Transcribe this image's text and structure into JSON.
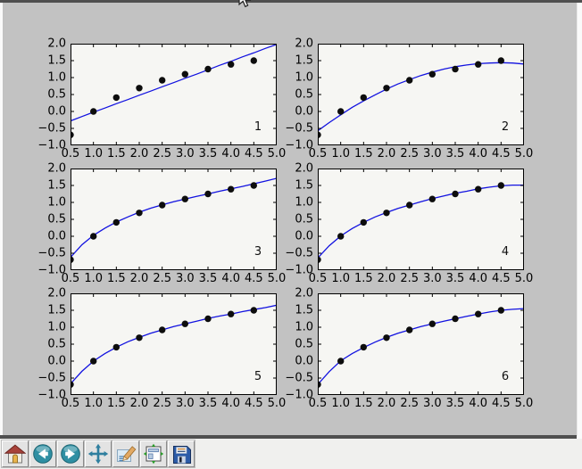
{
  "window": {
    "cursor_icon": "arrow-pointer"
  },
  "colors": {
    "chrome_band": "#4f4f4f",
    "figure_bg": "#c2c2c2",
    "axes_bg": "#f6f6f3",
    "fit_line": "#1212e0",
    "marker": "#0d0d0d",
    "tick": "#000000",
    "toolbar_bg": "#f0f0ee",
    "button_face": "#e3e3e3"
  },
  "toolbar": {
    "buttons": [
      {
        "name": "home",
        "icon": "home-icon"
      },
      {
        "name": "back",
        "icon": "back-arrow-icon"
      },
      {
        "name": "forward",
        "icon": "forward-arrow-icon"
      },
      {
        "name": "pan",
        "icon": "pan-arrows-icon"
      },
      {
        "name": "zoom-to-rect",
        "icon": "zoom-rect-pencil-icon"
      },
      {
        "name": "configure-subplots",
        "icon": "subplots-icon"
      },
      {
        "name": "save",
        "icon": "save-floppy-icon"
      }
    ]
  },
  "chart_data": [
    {
      "type": "scatter",
      "annotation": "1",
      "fit_degree": 1,
      "xlim": [
        0.5,
        5.0
      ],
      "ylim": [
        -1.0,
        2.0
      ],
      "grid": false,
      "xticks": [
        "0.5",
        "1.0",
        "1.5",
        "2.0",
        "2.5",
        "3.0",
        "3.5",
        "4.0",
        "4.5",
        "5.0"
      ],
      "yticks": [
        "2.0",
        "1.5",
        "1.0",
        "0.5",
        "0.0",
        "−0.5",
        "−1.0"
      ],
      "scatter": {
        "x": [
          0.5,
          1.0,
          1.5,
          2.0,
          2.5,
          3.0,
          3.5,
          4.0,
          4.5
        ],
        "y": [
          -0.69,
          0.0,
          0.41,
          0.69,
          0.92,
          1.1,
          1.25,
          1.39,
          1.5
        ]
      },
      "line": {
        "x": [
          0.5,
          0.75,
          1.0,
          1.25,
          1.5,
          1.75,
          2.0,
          2.25,
          2.5,
          2.75,
          3.0,
          3.25,
          3.5,
          3.75,
          4.0,
          4.25,
          4.5,
          4.75,
          5.0
        ],
        "y": [
          -0.28,
          -0.15,
          -0.02,
          0.1,
          0.23,
          0.35,
          0.48,
          0.6,
          0.73,
          0.85,
          0.98,
          1.1,
          1.23,
          1.36,
          1.48,
          1.61,
          1.73,
          1.86,
          1.98
        ]
      }
    },
    {
      "type": "scatter",
      "annotation": "2",
      "fit_degree": 2,
      "xlim": [
        0.5,
        5.0
      ],
      "ylim": [
        -1.0,
        2.0
      ],
      "grid": false,
      "xticks": [
        "0.5",
        "1.0",
        "1.5",
        "2.0",
        "2.5",
        "3.0",
        "3.5",
        "4.0",
        "4.5",
        "5.0"
      ],
      "yticks": [
        "2.0",
        "1.5",
        "1.0",
        "0.5",
        "0.0",
        "−0.5",
        "−1.0"
      ],
      "scatter": {
        "x": [
          0.5,
          1.0,
          1.5,
          2.0,
          2.5,
          3.0,
          3.5,
          4.0,
          4.5
        ],
        "y": [
          -0.69,
          0.0,
          0.41,
          0.69,
          0.92,
          1.1,
          1.25,
          1.39,
          1.5
        ]
      },
      "line": {
        "x": [
          0.5,
          0.75,
          1.0,
          1.25,
          1.5,
          1.75,
          2.0,
          2.25,
          2.5,
          2.75,
          3.0,
          3.25,
          3.5,
          3.75,
          4.0,
          4.25,
          4.5,
          4.75,
          5.0
        ],
        "y": [
          -0.57,
          -0.33,
          -0.1,
          0.12,
          0.31,
          0.49,
          0.66,
          0.81,
          0.94,
          1.06,
          1.16,
          1.25,
          1.32,
          1.37,
          1.41,
          1.43,
          1.44,
          1.43,
          1.4
        ]
      }
    },
    {
      "type": "scatter",
      "annotation": "3",
      "fit_degree": 3,
      "xlim": [
        0.5,
        5.0
      ],
      "ylim": [
        -1.0,
        2.0
      ],
      "grid": false,
      "xticks": [
        "0.5",
        "1.0",
        "1.5",
        "2.0",
        "2.5",
        "3.0",
        "3.5",
        "4.0",
        "4.5",
        "5.0"
      ],
      "yticks": [
        "2.0",
        "1.5",
        "1.0",
        "0.5",
        "0.0",
        "−0.5",
        "−1.0"
      ],
      "scatter": {
        "x": [
          0.5,
          1.0,
          1.5,
          2.0,
          2.5,
          3.0,
          3.5,
          4.0,
          4.5
        ],
        "y": [
          -0.69,
          0.0,
          0.41,
          0.69,
          0.92,
          1.1,
          1.25,
          1.39,
          1.5
        ]
      },
      "line": {
        "x": [
          0.5,
          0.75,
          1.0,
          1.25,
          1.5,
          1.75,
          2.0,
          2.25,
          2.5,
          2.75,
          3.0,
          3.25,
          3.5,
          3.75,
          4.0,
          4.25,
          4.5,
          4.75,
          5.0
        ],
        "y": [
          -0.62,
          -0.25,
          0.03,
          0.24,
          0.42,
          0.57,
          0.71,
          0.83,
          0.93,
          1.02,
          1.1,
          1.18,
          1.25,
          1.33,
          1.4,
          1.47,
          1.55,
          1.63,
          1.71
        ]
      }
    },
    {
      "type": "scatter",
      "annotation": "4",
      "fit_degree": 4,
      "xlim": [
        0.5,
        5.0
      ],
      "ylim": [
        -1.0,
        2.0
      ],
      "grid": false,
      "xticks": [
        "0.5",
        "1.0",
        "1.5",
        "2.0",
        "2.5",
        "3.0",
        "3.5",
        "4.0",
        "4.5",
        "5.0"
      ],
      "yticks": [
        "2.0",
        "1.5",
        "1.0",
        "0.5",
        "0.0",
        "−0.5",
        "−1.0"
      ],
      "scatter": {
        "x": [
          0.5,
          1.0,
          1.5,
          2.0,
          2.5,
          3.0,
          3.5,
          4.0,
          4.5
        ],
        "y": [
          -0.69,
          0.0,
          0.41,
          0.69,
          0.92,
          1.1,
          1.25,
          1.39,
          1.5
        ]
      },
      "line": {
        "x": [
          0.5,
          0.75,
          1.0,
          1.25,
          1.5,
          1.75,
          2.0,
          2.25,
          2.5,
          2.75,
          3.0,
          3.25,
          3.5,
          3.75,
          4.0,
          4.25,
          4.5,
          4.75,
          5.0
        ],
        "y": [
          -0.64,
          -0.28,
          0.01,
          0.23,
          0.41,
          0.57,
          0.7,
          0.82,
          0.92,
          1.02,
          1.11,
          1.19,
          1.27,
          1.33,
          1.4,
          1.45,
          1.49,
          1.51,
          1.51
        ]
      }
    },
    {
      "type": "scatter",
      "annotation": "5",
      "fit_degree": 5,
      "xlim": [
        0.5,
        5.0
      ],
      "ylim": [
        -1.0,
        2.0
      ],
      "grid": false,
      "xticks": [
        "0.5",
        "1.0",
        "1.5",
        "2.0",
        "2.5",
        "3.0",
        "3.5",
        "4.0",
        "4.5",
        "5.0"
      ],
      "yticks": [
        "2.0",
        "1.5",
        "1.0",
        "0.5",
        "0.0",
        "−0.5",
        "−1.0"
      ],
      "scatter": {
        "x": [
          0.5,
          1.0,
          1.5,
          2.0,
          2.5,
          3.0,
          3.5,
          4.0,
          4.5
        ],
        "y": [
          -0.69,
          0.0,
          0.41,
          0.69,
          0.92,
          1.1,
          1.25,
          1.39,
          1.5
        ]
      },
      "line": {
        "x": [
          0.5,
          0.75,
          1.0,
          1.25,
          1.5,
          1.75,
          2.0,
          2.25,
          2.5,
          2.75,
          3.0,
          3.25,
          3.5,
          3.75,
          4.0,
          4.25,
          4.5,
          4.75,
          5.0
        ],
        "y": [
          -0.67,
          -0.3,
          0.0,
          0.22,
          0.41,
          0.57,
          0.7,
          0.82,
          0.92,
          1.02,
          1.1,
          1.18,
          1.26,
          1.33,
          1.39,
          1.46,
          1.52,
          1.58,
          1.65
        ]
      }
    },
    {
      "type": "scatter",
      "annotation": "6",
      "fit_degree": 6,
      "xlim": [
        0.5,
        5.0
      ],
      "ylim": [
        -1.0,
        2.0
      ],
      "grid": false,
      "xticks": [
        "0.5",
        "1.0",
        "1.5",
        "2.0",
        "2.5",
        "3.0",
        "3.5",
        "4.0",
        "4.5",
        "5.0"
      ],
      "yticks": [
        "2.0",
        "1.5",
        "1.0",
        "0.5",
        "0.0",
        "−0.5",
        "−1.0"
      ],
      "scatter": {
        "x": [
          0.5,
          1.0,
          1.5,
          2.0,
          2.5,
          3.0,
          3.5,
          4.0,
          4.5
        ],
        "y": [
          -0.69,
          0.0,
          0.41,
          0.69,
          0.92,
          1.1,
          1.25,
          1.39,
          1.5
        ]
      },
      "line": {
        "x": [
          0.5,
          0.75,
          1.0,
          1.25,
          1.5,
          1.75,
          2.0,
          2.25,
          2.5,
          2.75,
          3.0,
          3.25,
          3.5,
          3.75,
          4.0,
          4.25,
          4.5,
          4.75,
          5.0
        ],
        "y": [
          -0.69,
          -0.31,
          0.01,
          0.22,
          0.4,
          0.56,
          0.7,
          0.82,
          0.92,
          1.02,
          1.1,
          1.18,
          1.25,
          1.32,
          1.39,
          1.45,
          1.5,
          1.53,
          1.55
        ]
      }
    }
  ]
}
